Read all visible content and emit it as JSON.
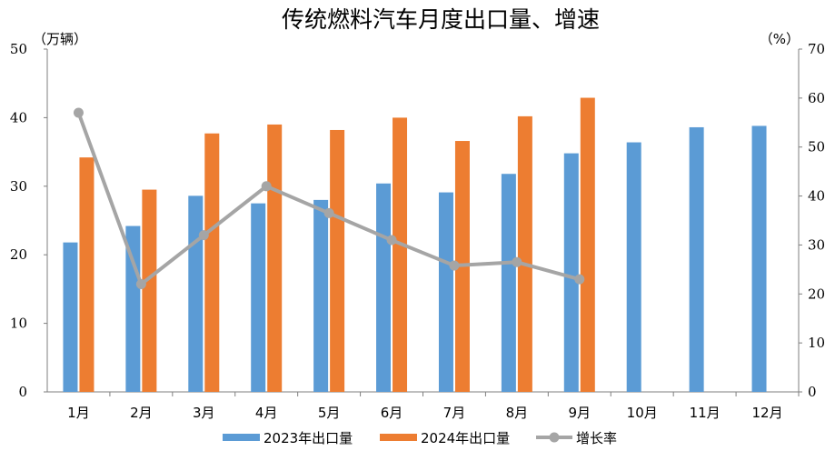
{
  "chart_data": {
    "type": "bar",
    "title": "传统燃料汽车月度出口量、增速",
    "left_unit": "（万辆）",
    "right_unit": "（%）",
    "categories": [
      "1月",
      "2月",
      "3月",
      "4月",
      "5月",
      "6月",
      "7月",
      "8月",
      "9月",
      "10月",
      "11月",
      "12月"
    ],
    "left_ticks": [
      "0",
      "10",
      "20",
      "30",
      "40",
      "50"
    ],
    "right_ticks": [
      "0",
      "10",
      "20",
      "30",
      "40",
      "50",
      "60",
      "70"
    ],
    "ylim_left": [
      0,
      50
    ],
    "ylim_right": [
      0,
      70
    ],
    "grid": false,
    "legend_position": "bottom",
    "series": [
      {
        "name": "2023年出口量",
        "type": "bar",
        "axis": "left",
        "color": "#5b9bd5",
        "values": [
          21.8,
          24.2,
          28.6,
          27.5,
          28.0,
          30.4,
          29.1,
          31.8,
          34.8,
          36.4,
          38.6,
          38.8
        ]
      },
      {
        "name": "2024年出口量",
        "type": "bar",
        "axis": "left",
        "color": "#ed7d31",
        "values": [
          34.2,
          29.5,
          37.7,
          39.0,
          38.2,
          40.0,
          36.6,
          40.2,
          42.9,
          null,
          null,
          null
        ]
      },
      {
        "name": "增长率",
        "type": "line",
        "axis": "right",
        "color": "#a5a5a5",
        "values": [
          57,
          22,
          32,
          42,
          36.5,
          31,
          25.8,
          26.5,
          23,
          null,
          null,
          null
        ]
      }
    ]
  }
}
